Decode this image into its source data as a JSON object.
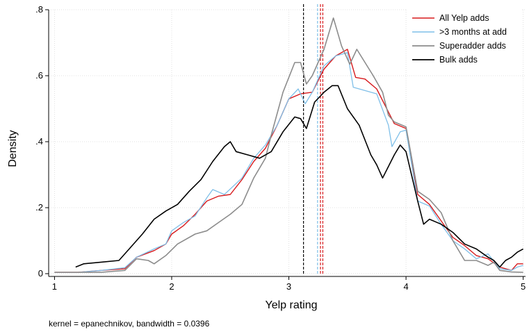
{
  "chart_data": {
    "type": "line",
    "xlabel": "Yelp rating",
    "ylabel": "Density",
    "note": "kernel = epanechnikov, bandwidth = 0.0396",
    "xlim": [
      0.95,
      5.02
    ],
    "ylim": [
      0,
      0.8
    ],
    "xticks": [
      1,
      2,
      3,
      4,
      5
    ],
    "xtick_labels": [
      "1",
      "2",
      "3",
      "4",
      "5"
    ],
    "yticks": [
      0,
      0.2,
      0.4,
      0.6,
      0.8
    ],
    "ytick_labels": [
      "0",
      ".2",
      ".4",
      ".6",
      ".8"
    ],
    "grid": true,
    "legend_position": "top-right",
    "series": [
      {
        "name": "All Yelp adds",
        "color": "#d7191c",
        "width": 1.4,
        "points": [
          [
            1.0,
            0.004
          ],
          [
            1.2,
            0.004
          ],
          [
            1.4,
            0.01
          ],
          [
            1.6,
            0.015
          ],
          [
            1.7,
            0.05
          ],
          [
            1.85,
            0.07
          ],
          [
            1.95,
            0.09
          ],
          [
            2.0,
            0.12
          ],
          [
            2.1,
            0.145
          ],
          [
            2.2,
            0.18
          ],
          [
            2.3,
            0.22
          ],
          [
            2.4,
            0.235
          ],
          [
            2.5,
            0.24
          ],
          [
            2.6,
            0.285
          ],
          [
            2.7,
            0.34
          ],
          [
            2.8,
            0.38
          ],
          [
            2.9,
            0.45
          ],
          [
            3.0,
            0.53
          ],
          [
            3.1,
            0.545
          ],
          [
            3.2,
            0.55
          ],
          [
            3.3,
            0.62
          ],
          [
            3.4,
            0.66
          ],
          [
            3.5,
            0.68
          ],
          [
            3.57,
            0.595
          ],
          [
            3.65,
            0.59
          ],
          [
            3.75,
            0.56
          ],
          [
            3.85,
            0.49
          ],
          [
            3.9,
            0.455
          ],
          [
            4.0,
            0.44
          ],
          [
            4.1,
            0.24
          ],
          [
            4.2,
            0.21
          ],
          [
            4.3,
            0.16
          ],
          [
            4.4,
            0.11
          ],
          [
            4.5,
            0.085
          ],
          [
            4.6,
            0.055
          ],
          [
            4.7,
            0.045
          ],
          [
            4.8,
            0.02
          ],
          [
            4.9,
            0.01
          ],
          [
            4.95,
            0.03
          ],
          [
            5.0,
            0.03
          ]
        ]
      },
      {
        "name": ">3 months at add",
        "color": "#7fbfe8",
        "width": 1.3,
        "points": [
          [
            1.0,
            0.004
          ],
          [
            1.2,
            0.004
          ],
          [
            1.4,
            0.01
          ],
          [
            1.6,
            0.018
          ],
          [
            1.7,
            0.05
          ],
          [
            1.85,
            0.075
          ],
          [
            1.95,
            0.09
          ],
          [
            2.0,
            0.13
          ],
          [
            2.1,
            0.155
          ],
          [
            2.2,
            0.175
          ],
          [
            2.3,
            0.23
          ],
          [
            2.35,
            0.255
          ],
          [
            2.45,
            0.24
          ],
          [
            2.6,
            0.29
          ],
          [
            2.7,
            0.35
          ],
          [
            2.8,
            0.39
          ],
          [
            2.9,
            0.45
          ],
          [
            3.0,
            0.53
          ],
          [
            3.08,
            0.56
          ],
          [
            3.14,
            0.515
          ],
          [
            3.2,
            0.55
          ],
          [
            3.3,
            0.63
          ],
          [
            3.4,
            0.66
          ],
          [
            3.5,
            0.67
          ],
          [
            3.55,
            0.565
          ],
          [
            3.65,
            0.555
          ],
          [
            3.75,
            0.545
          ],
          [
            3.85,
            0.45
          ],
          [
            3.88,
            0.385
          ],
          [
            3.95,
            0.43
          ],
          [
            4.0,
            0.435
          ],
          [
            4.1,
            0.22
          ],
          [
            4.2,
            0.205
          ],
          [
            4.3,
            0.15
          ],
          [
            4.4,
            0.1
          ],
          [
            4.5,
            0.075
          ],
          [
            4.6,
            0.045
          ],
          [
            4.7,
            0.06
          ],
          [
            4.8,
            0.015
          ],
          [
            4.9,
            0.01
          ],
          [
            4.95,
            0.02
          ],
          [
            5.0,
            0.025
          ]
        ]
      },
      {
        "name": "Superadder adds",
        "color": "#8c8c8c",
        "width": 1.6,
        "points": [
          [
            1.0,
            0.004
          ],
          [
            1.2,
            0.004
          ],
          [
            1.4,
            0.004
          ],
          [
            1.6,
            0.01
          ],
          [
            1.7,
            0.045
          ],
          [
            1.8,
            0.04
          ],
          [
            1.85,
            0.03
          ],
          [
            1.95,
            0.055
          ],
          [
            2.05,
            0.09
          ],
          [
            2.2,
            0.12
          ],
          [
            2.3,
            0.13
          ],
          [
            2.4,
            0.155
          ],
          [
            2.5,
            0.18
          ],
          [
            2.6,
            0.21
          ],
          [
            2.7,
            0.29
          ],
          [
            2.8,
            0.35
          ],
          [
            2.85,
            0.42
          ],
          [
            2.95,
            0.55
          ],
          [
            3.05,
            0.64
          ],
          [
            3.1,
            0.64
          ],
          [
            3.15,
            0.575
          ],
          [
            3.2,
            0.6
          ],
          [
            3.3,
            0.68
          ],
          [
            3.38,
            0.775
          ],
          [
            3.45,
            0.69
          ],
          [
            3.52,
            0.635
          ],
          [
            3.58,
            0.68
          ],
          [
            3.65,
            0.64
          ],
          [
            3.72,
            0.6
          ],
          [
            3.8,
            0.55
          ],
          [
            3.85,
            0.48
          ],
          [
            3.9,
            0.46
          ],
          [
            4.0,
            0.445
          ],
          [
            4.1,
            0.25
          ],
          [
            4.2,
            0.225
          ],
          [
            4.3,
            0.185
          ],
          [
            4.4,
            0.1
          ],
          [
            4.5,
            0.04
          ],
          [
            4.6,
            0.04
          ],
          [
            4.7,
            0.025
          ],
          [
            4.75,
            0.035
          ],
          [
            4.8,
            0.01
          ],
          [
            4.9,
            0.005
          ],
          [
            5.0,
            0.004
          ]
        ]
      },
      {
        "name": "Bulk adds",
        "color": "#000000",
        "width": 1.6,
        "points": [
          [
            1.18,
            0.02
          ],
          [
            1.25,
            0.03
          ],
          [
            1.4,
            0.035
          ],
          [
            1.55,
            0.04
          ],
          [
            1.65,
            0.08
          ],
          [
            1.75,
            0.12
          ],
          [
            1.85,
            0.165
          ],
          [
            1.95,
            0.19
          ],
          [
            2.05,
            0.21
          ],
          [
            2.15,
            0.25
          ],
          [
            2.25,
            0.285
          ],
          [
            2.35,
            0.34
          ],
          [
            2.45,
            0.385
          ],
          [
            2.5,
            0.4
          ],
          [
            2.55,
            0.37
          ],
          [
            2.65,
            0.36
          ],
          [
            2.75,
            0.35
          ],
          [
            2.85,
            0.37
          ],
          [
            2.95,
            0.43
          ],
          [
            3.05,
            0.475
          ],
          [
            3.1,
            0.47
          ],
          [
            3.15,
            0.44
          ],
          [
            3.22,
            0.52
          ],
          [
            3.3,
            0.55
          ],
          [
            3.37,
            0.57
          ],
          [
            3.42,
            0.57
          ],
          [
            3.5,
            0.5
          ],
          [
            3.6,
            0.45
          ],
          [
            3.7,
            0.36
          ],
          [
            3.75,
            0.33
          ],
          [
            3.8,
            0.29
          ],
          [
            3.9,
            0.36
          ],
          [
            3.95,
            0.39
          ],
          [
            4.0,
            0.37
          ],
          [
            4.1,
            0.22
          ],
          [
            4.15,
            0.15
          ],
          [
            4.2,
            0.165
          ],
          [
            4.3,
            0.15
          ],
          [
            4.4,
            0.125
          ],
          [
            4.5,
            0.09
          ],
          [
            4.6,
            0.075
          ],
          [
            4.7,
            0.05
          ],
          [
            4.75,
            0.04
          ],
          [
            4.8,
            0.02
          ],
          [
            4.85,
            0.04
          ],
          [
            4.9,
            0.05
          ],
          [
            4.95,
            0.065
          ],
          [
            5.0,
            0.075
          ]
        ]
      }
    ],
    "reference_lines": [
      {
        "x": 3.125,
        "color": "#000000"
      },
      {
        "x": 3.245,
        "color": "#7fbfe8"
      },
      {
        "x": 3.27,
        "color": "#d7191c"
      },
      {
        "x": 3.29,
        "color": "#d7191c"
      }
    ]
  }
}
